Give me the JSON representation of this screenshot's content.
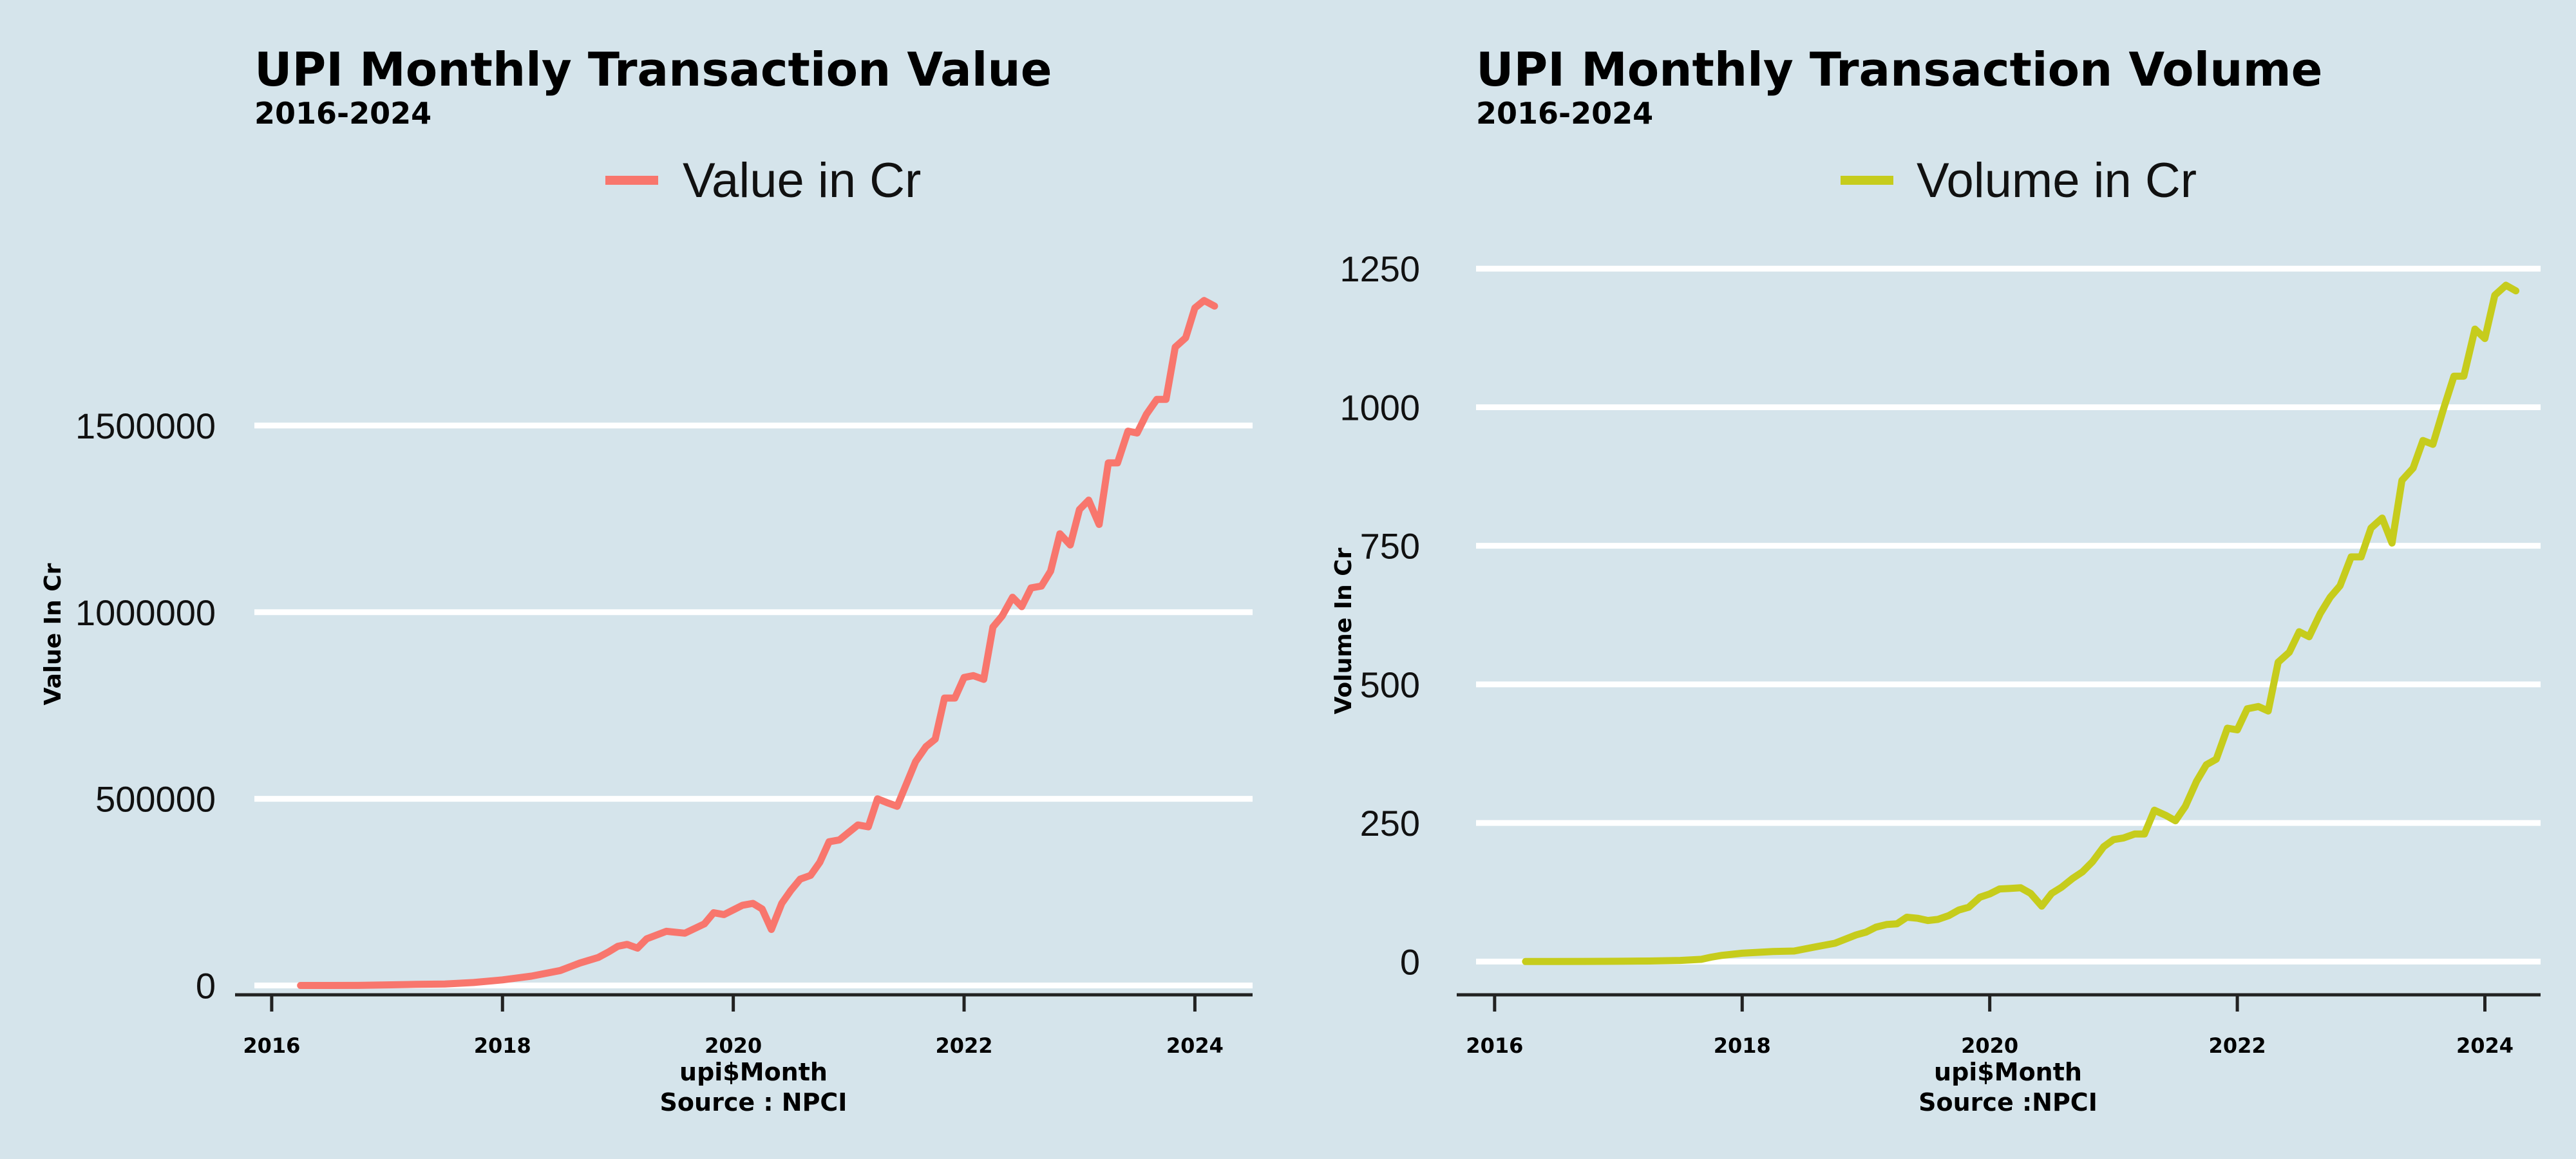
{
  "chart_data": [
    {
      "type": "line",
      "title": "UPI Monthly Transaction Value",
      "subtitle": "2016-2024",
      "xlabel": "upi$Month",
      "ylabel": "Value In Cr",
      "caption": "Source : NPCI",
      "legend_position": "top",
      "grid": "horizontal",
      "x_ticks": [
        "2016",
        "2018",
        "2020",
        "2022",
        "2024"
      ],
      "xlim": [
        2015.85,
        2024.5
      ],
      "y_ticks": [
        0,
        500000,
        1000000,
        1500000
      ],
      "ylim": [
        -25000,
        1950000
      ],
      "series": [
        {
          "name": "Value in Cr",
          "color": "#f8766d",
          "points": [
            [
              2016.25,
              0
            ],
            [
              2016.75,
              200
            ],
            [
              2017.0,
              1500
            ],
            [
              2017.25,
              3000
            ],
            [
              2017.5,
              4000
            ],
            [
              2017.75,
              8000
            ],
            [
              2018.0,
              15000
            ],
            [
              2018.25,
              25000
            ],
            [
              2018.5,
              40000
            ],
            [
              2018.67,
              60000
            ],
            [
              2018.83,
              75000
            ],
            [
              2018.92,
              90000
            ],
            [
              2019.0,
              105000
            ],
            [
              2019.08,
              110000
            ],
            [
              2019.17,
              100000
            ],
            [
              2019.25,
              125000
            ],
            [
              2019.42,
              145000
            ],
            [
              2019.58,
              140000
            ],
            [
              2019.75,
              165000
            ],
            [
              2019.83,
              195000
            ],
            [
              2019.92,
              190000
            ],
            [
              2020.08,
              215000
            ],
            [
              2020.17,
              220000
            ],
            [
              2020.25,
              205000
            ],
            [
              2020.33,
              150000
            ],
            [
              2020.42,
              220000
            ],
            [
              2020.5,
              255000
            ],
            [
              2020.58,
              285000
            ],
            [
              2020.67,
              295000
            ],
            [
              2020.75,
              330000
            ],
            [
              2020.83,
              385000
            ],
            [
              2020.92,
              390000
            ],
            [
              2021.0,
              410000
            ],
            [
              2021.08,
              430000
            ],
            [
              2021.17,
              425000
            ],
            [
              2021.25,
              500000
            ],
            [
              2021.33,
              490000
            ],
            [
              2021.42,
              480000
            ],
            [
              2021.58,
              600000
            ],
            [
              2021.67,
              640000
            ],
            [
              2021.75,
              660000
            ],
            [
              2021.83,
              770000
            ],
            [
              2021.92,
              770000
            ],
            [
              2022.0,
              825000
            ],
            [
              2022.08,
              830000
            ],
            [
              2022.17,
              820000
            ],
            [
              2022.25,
              960000
            ],
            [
              2022.33,
              990000
            ],
            [
              2022.42,
              1040000
            ],
            [
              2022.5,
              1015000
            ],
            [
              2022.58,
              1065000
            ],
            [
              2022.67,
              1070000
            ],
            [
              2022.75,
              1110000
            ],
            [
              2022.83,
              1210000
            ],
            [
              2022.92,
              1180000
            ],
            [
              2023.0,
              1275000
            ],
            [
              2023.08,
              1300000
            ],
            [
              2023.17,
              1235000
            ],
            [
              2023.25,
              1400000
            ],
            [
              2023.33,
              1400000
            ],
            [
              2023.42,
              1485000
            ],
            [
              2023.5,
              1480000
            ],
            [
              2023.58,
              1530000
            ],
            [
              2023.67,
              1570000
            ],
            [
              2023.75,
              1570000
            ],
            [
              2023.83,
              1710000
            ],
            [
              2023.92,
              1735000
            ],
            [
              2024.0,
              1815000
            ],
            [
              2024.08,
              1835000
            ],
            [
              2024.17,
              1820000
            ]
          ]
        }
      ]
    },
    {
      "type": "line",
      "title": "UPI Monthly Transaction Volume",
      "subtitle": "2016-2024",
      "xlabel": "upi$Month",
      "ylabel": "Volume In Cr",
      "caption": "Source :NPCI",
      "legend_position": "top",
      "grid": "horizontal",
      "x_ticks": [
        "2016",
        "2018",
        "2020",
        "2022",
        "2024"
      ],
      "xlim": [
        2015.85,
        2024.45
      ],
      "y_ticks": [
        0,
        250,
        500,
        750,
        1000,
        1250
      ],
      "ylim": [
        -60,
        1270
      ],
      "series": [
        {
          "name": "Volume in Cr",
          "color": "#c6cc1c",
          "points": [
            [
              2016.25,
              0
            ],
            [
              2016.75,
              0.3
            ],
            [
              2017.0,
              0.5
            ],
            [
              2017.25,
              1
            ],
            [
              2017.5,
              2
            ],
            [
              2017.67,
              4
            ],
            [
              2017.75,
              8
            ],
            [
              2017.83,
              11
            ],
            [
              2018.0,
              15
            ],
            [
              2018.25,
              18
            ],
            [
              2018.42,
              19
            ],
            [
              2018.58,
              26
            ],
            [
              2018.75,
              33
            ],
            [
              2018.92,
              48
            ],
            [
              2019.0,
              53
            ],
            [
              2019.08,
              62
            ],
            [
              2019.17,
              67
            ],
            [
              2019.25,
              68
            ],
            [
              2019.33,
              80
            ],
            [
              2019.42,
              78
            ],
            [
              2019.5,
              74
            ],
            [
              2019.58,
              76
            ],
            [
              2019.67,
              83
            ],
            [
              2019.75,
              93
            ],
            [
              2019.83,
              98
            ],
            [
              2019.92,
              116
            ],
            [
              2020.0,
              122
            ],
            [
              2020.08,
              131
            ],
            [
              2020.17,
              132
            ],
            [
              2020.25,
              133
            ],
            [
              2020.33,
              123
            ],
            [
              2020.42,
              100
            ],
            [
              2020.5,
              123
            ],
            [
              2020.58,
              134
            ],
            [
              2020.67,
              150
            ],
            [
              2020.75,
              162
            ],
            [
              2020.83,
              180
            ],
            [
              2020.92,
              207
            ],
            [
              2021.0,
              220
            ],
            [
              2021.08,
              223
            ],
            [
              2021.17,
              230
            ],
            [
              2021.25,
              230
            ],
            [
              2021.33,
              273
            ],
            [
              2021.42,
              264
            ],
            [
              2021.5,
              254
            ],
            [
              2021.58,
              280
            ],
            [
              2021.67,
              325
            ],
            [
              2021.75,
              355
            ],
            [
              2021.83,
              365
            ],
            [
              2021.92,
              421
            ],
            [
              2022.0,
              418
            ],
            [
              2022.08,
              456
            ],
            [
              2022.17,
              460
            ],
            [
              2022.25,
              452
            ],
            [
              2022.33,
              540
            ],
            [
              2022.42,
              558
            ],
            [
              2022.5,
              595
            ],
            [
              2022.58,
              586
            ],
            [
              2022.67,
              628
            ],
            [
              2022.75,
              657
            ],
            [
              2022.83,
              678
            ],
            [
              2022.92,
              730
            ],
            [
              2023.0,
              730
            ],
            [
              2023.08,
              782
            ],
            [
              2023.17,
              800
            ],
            [
              2023.25,
              755
            ],
            [
              2023.33,
              868
            ],
            [
              2023.42,
              890
            ],
            [
              2023.5,
              940
            ],
            [
              2023.58,
              933
            ],
            [
              2023.67,
              1000
            ],
            [
              2023.75,
              1056
            ],
            [
              2023.83,
              1056
            ],
            [
              2023.92,
              1141
            ],
            [
              2024.0,
              1124
            ],
            [
              2024.08,
              1202
            ],
            [
              2024.17,
              1220
            ],
            [
              2024.25,
              1210
            ]
          ]
        }
      ]
    }
  ]
}
